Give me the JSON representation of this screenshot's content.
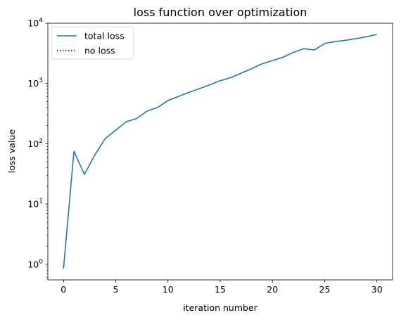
{
  "chart_data": {
    "type": "line",
    "title": "loss function over optimization",
    "xlabel": "iteration number",
    "ylabel": "loss value",
    "yscale": "log",
    "xlim": [
      -1.5,
      31.5
    ],
    "ylim": [
      0.55,
      10000
    ],
    "x_ticks": [
      0,
      5,
      10,
      15,
      20,
      25,
      30
    ],
    "x_tick_labels": [
      "0",
      "5",
      "10",
      "15",
      "20",
      "25",
      "30"
    ],
    "y_ticks": [
      {
        "value": 1,
        "base": "10",
        "exp": "0"
      },
      {
        "value": 10,
        "base": "10",
        "exp": "1"
      },
      {
        "value": 100,
        "base": "10",
        "exp": "2"
      },
      {
        "value": 1000,
        "base": "10",
        "exp": "3"
      },
      {
        "value": 10000,
        "base": "10",
        "exp": "4"
      }
    ],
    "grid": false,
    "legend_position": "top-left",
    "series": [
      {
        "name": "total loss",
        "color": "#1f77b4",
        "style": "solid",
        "x": [
          0,
          1,
          2,
          3,
          4,
          5,
          6,
          7,
          8,
          9,
          10,
          11,
          12,
          13,
          14,
          15,
          16,
          17,
          18,
          19,
          20,
          21,
          22,
          23,
          24,
          25,
          26,
          27,
          28,
          29,
          30
        ],
        "values": [
          0.85,
          75,
          31,
          65,
          122,
          168,
          232,
          262,
          348,
          400,
          520,
          610,
          710,
          820,
          950,
          1110,
          1250,
          1480,
          1760,
          2120,
          2400,
          2720,
          3280,
          3780,
          3600,
          4600,
          4950,
          5200,
          5550,
          5950,
          6500
        ]
      },
      {
        "name": "no loss",
        "color": "#000000",
        "style": "dotted",
        "x": [],
        "values": []
      }
    ]
  }
}
